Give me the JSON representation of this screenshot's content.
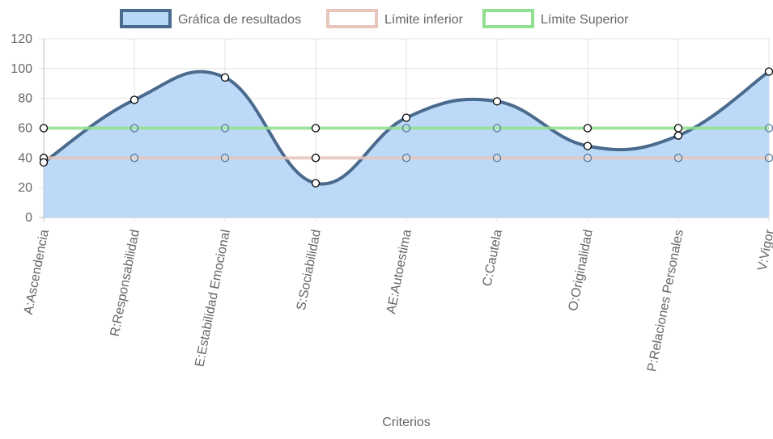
{
  "chart_data": {
    "type": "line",
    "categories": [
      "A:Ascendencia",
      "R:Responsabilidad",
      "E:Estabilidad Emocional",
      "S:Sociabilidad",
      "AE:Autoestima",
      "C:Cautela",
      "O:Originalidad",
      "P:Relaciones Personales",
      "V:Vigor"
    ],
    "series": [
      {
        "name": "Gráfica de resultados",
        "values": [
          37,
          79,
          94,
          23,
          67,
          78,
          48,
          55,
          98
        ],
        "color": "#4a6a8e",
        "fill": "#b8d8f8",
        "filled": true
      },
      {
        "name": "Límite inferior",
        "values": [
          40,
          40,
          40,
          40,
          40,
          40,
          40,
          40,
          40
        ],
        "color": "#e8c6bc",
        "filled": false
      },
      {
        "name": "Límite Superior",
        "values": [
          60,
          60,
          60,
          60,
          60,
          60,
          60,
          60,
          60
        ],
        "color": "#90e090",
        "filled": false
      }
    ],
    "xlabel": "Criterios",
    "ylabel": "",
    "ylim": [
      0,
      120
    ],
    "yticks": [
      "0",
      "20",
      "40",
      "60",
      "80",
      "100",
      "120"
    ],
    "grid": true,
    "legend_position": "top"
  }
}
